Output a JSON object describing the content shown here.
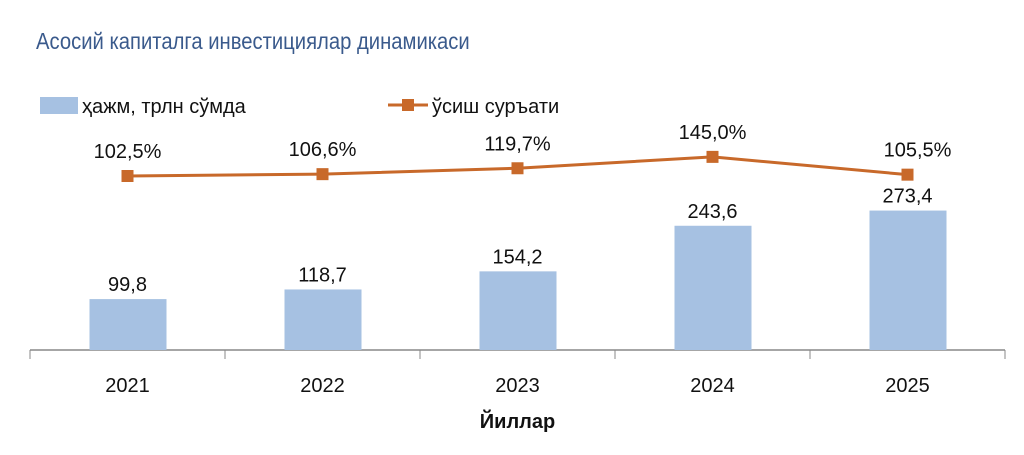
{
  "chart_data": {
    "type": "bar+line",
    "title": "Асосий капиталга инвестициялар динамикаси",
    "xlabel": "Йиллар",
    "categories": [
      "2021",
      "2022",
      "2023",
      "2024",
      "2025"
    ],
    "series": [
      {
        "name": "ҳажм, трлн сўмда",
        "type": "bar",
        "color": "#a6c1e2",
        "values": [
          99.8,
          118.7,
          154.2,
          243.6,
          273.4
        ],
        "labels": [
          "99,8",
          "118,7",
          "154,2",
          "243,6",
          "273,4"
        ]
      },
      {
        "name": "ўсиш суръати",
        "type": "line",
        "color": "#c8692a",
        "values": [
          102.5,
          106.6,
          119.7,
          145.0,
          105.5
        ],
        "labels": [
          "102,5%",
          "106,6%",
          "119,7%",
          "145,0%",
          "105,5%"
        ]
      }
    ],
    "grid": false,
    "legend": "top-left"
  }
}
